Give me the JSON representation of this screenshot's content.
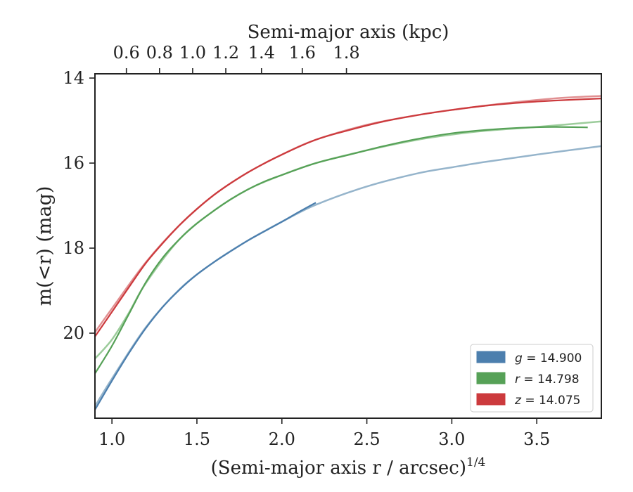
{
  "chart_data": {
    "type": "line",
    "xlabel": "(Semi-major axis r / arcsec)",
    "xlabel_exponent": "1/4",
    "ylabel": "m(<r) (mag)",
    "top_xlabel": "Semi-major axis (kpc)",
    "xlim": [
      0.9,
      3.88
    ],
    "ylim": [
      22.0,
      13.9
    ],
    "y_inverted": true,
    "x_ticks": [
      1.0,
      1.5,
      2.0,
      2.5,
      3.0,
      3.5
    ],
    "x_tick_labels": [
      "1.0",
      "1.5",
      "2.0",
      "2.5",
      "3.0",
      "3.5"
    ],
    "y_ticks": [
      14,
      16,
      18,
      20
    ],
    "y_tick_labels": [
      "14",
      "16",
      "18",
      "20"
    ],
    "top_ticks": [
      {
        "kpc": 0.6,
        "x": 1.085
      },
      {
        "kpc": 0.8,
        "x": 1.28
      },
      {
        "kpc": 1.0,
        "x": 1.475
      },
      {
        "kpc": 1.2,
        "x": 1.67
      },
      {
        "kpc": 1.4,
        "x": 1.88
      },
      {
        "kpc": 1.6,
        "x": 2.12
      },
      {
        "kpc": 1.8,
        "x": 2.38
      }
    ],
    "top_tick_labels": [
      "0.6",
      "0.8",
      "1.0",
      "1.2",
      "1.4",
      "1.6",
      "1.8"
    ],
    "grid": false,
    "legend_position": "bottom-right",
    "series": [
      {
        "name": "g = 14.900",
        "legend_symbol": "g",
        "legend_value": "= 14.900",
        "color": "#4c7fae",
        "model_color": "#8fb0c8",
        "data": [
          [
            0.9,
            21.8
          ],
          [
            1.0,
            21.12
          ],
          [
            1.1,
            20.47
          ],
          [
            1.2,
            19.88
          ],
          [
            1.3,
            19.38
          ],
          [
            1.4,
            18.97
          ],
          [
            1.5,
            18.62
          ],
          [
            1.6,
            18.33
          ],
          [
            1.7,
            18.07
          ],
          [
            1.8,
            17.82
          ],
          [
            1.9,
            17.6
          ],
          [
            2.0,
            17.38
          ],
          [
            2.1,
            17.15
          ],
          [
            2.2,
            16.93
          ]
        ],
        "model": [
          [
            0.9,
            21.72
          ],
          [
            1.0,
            21.07
          ],
          [
            1.2,
            19.86
          ],
          [
            1.4,
            18.96
          ],
          [
            1.6,
            18.33
          ],
          [
            1.8,
            17.82
          ],
          [
            2.0,
            17.38
          ],
          [
            2.2,
            16.98
          ],
          [
            2.5,
            16.55
          ],
          [
            2.8,
            16.24
          ],
          [
            3.0,
            16.1
          ],
          [
            3.2,
            15.97
          ],
          [
            3.5,
            15.8
          ],
          [
            3.88,
            15.6
          ]
        ]
      },
      {
        "name": "r = 14.798",
        "legend_symbol": "r",
        "legend_value": "= 14.798",
        "color": "#56a157",
        "model_color": "#97c996",
        "data": [
          [
            0.9,
            20.95
          ],
          [
            1.0,
            20.3
          ],
          [
            1.1,
            19.55
          ],
          [
            1.2,
            18.8
          ],
          [
            1.3,
            18.22
          ],
          [
            1.4,
            17.78
          ],
          [
            1.5,
            17.42
          ],
          [
            1.6,
            17.12
          ],
          [
            1.7,
            16.85
          ],
          [
            1.8,
            16.62
          ],
          [
            1.9,
            16.43
          ],
          [
            2.0,
            16.28
          ],
          [
            2.2,
            16.0
          ],
          [
            2.4,
            15.8
          ],
          [
            2.6,
            15.6
          ],
          [
            2.8,
            15.43
          ],
          [
            3.0,
            15.3
          ],
          [
            3.2,
            15.22
          ],
          [
            3.4,
            15.17
          ],
          [
            3.6,
            15.15
          ],
          [
            3.8,
            15.16
          ]
        ],
        "model": [
          [
            0.9,
            20.6
          ],
          [
            1.0,
            20.15
          ],
          [
            1.1,
            19.52
          ],
          [
            1.2,
            18.82
          ],
          [
            1.4,
            17.78
          ],
          [
            1.6,
            17.12
          ],
          [
            1.8,
            16.62
          ],
          [
            2.0,
            16.28
          ],
          [
            2.2,
            16.0
          ],
          [
            2.5,
            15.7
          ],
          [
            2.8,
            15.45
          ],
          [
            3.0,
            15.33
          ],
          [
            3.2,
            15.24
          ],
          [
            3.5,
            15.15
          ],
          [
            3.88,
            15.02
          ]
        ]
      },
      {
        "name": "z = 14.075",
        "legend_symbol": "z",
        "legend_value": "= 14.075",
        "color": "#cc3a3d",
        "model_color": "#df8a8c",
        "data": [
          [
            0.9,
            20.08
          ],
          [
            1.0,
            19.5
          ],
          [
            1.1,
            18.92
          ],
          [
            1.2,
            18.35
          ],
          [
            1.3,
            17.88
          ],
          [
            1.4,
            17.45
          ],
          [
            1.5,
            17.08
          ],
          [
            1.6,
            16.75
          ],
          [
            1.7,
            16.47
          ],
          [
            1.8,
            16.22
          ],
          [
            1.9,
            16.0
          ],
          [
            2.0,
            15.8
          ],
          [
            2.2,
            15.45
          ],
          [
            2.4,
            15.22
          ],
          [
            2.6,
            15.02
          ],
          [
            2.8,
            14.87
          ],
          [
            3.0,
            14.75
          ],
          [
            3.2,
            14.65
          ],
          [
            3.4,
            14.58
          ],
          [
            3.6,
            14.53
          ],
          [
            3.88,
            14.48
          ]
        ],
        "model": [
          [
            0.9,
            19.98
          ],
          [
            1.0,
            19.42
          ],
          [
            1.2,
            18.33
          ],
          [
            1.4,
            17.45
          ],
          [
            1.6,
            16.75
          ],
          [
            1.8,
            16.22
          ],
          [
            2.0,
            15.8
          ],
          [
            2.2,
            15.45
          ],
          [
            2.5,
            15.1
          ],
          [
            2.8,
            14.87
          ],
          [
            3.0,
            14.75
          ],
          [
            3.3,
            14.6
          ],
          [
            3.6,
            14.48
          ],
          [
            3.88,
            14.42
          ]
        ]
      }
    ]
  }
}
